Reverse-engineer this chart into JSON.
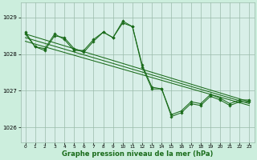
{
  "background_color": "#cceedd",
  "plot_bg_color": "#d8efe8",
  "grid_color": "#99bbaa",
  "line_color": "#1a6b1a",
  "marker_color": "#1a6b1a",
  "xlabel": "Graphe pression niveau de la mer (hPa)",
  "xlabel_fontsize": 6.0,
  "xlim": [
    -0.5,
    23.5
  ],
  "ylim": [
    1025.6,
    1029.4
  ],
  "yticks": [
    1026,
    1027,
    1028,
    1029
  ],
  "xticks": [
    0,
    1,
    2,
    3,
    4,
    5,
    6,
    7,
    8,
    9,
    10,
    11,
    12,
    13,
    14,
    15,
    16,
    17,
    18,
    19,
    20,
    21,
    22,
    23
  ],
  "series_jagged1": {
    "x": [
      0,
      1,
      2,
      3,
      4,
      5,
      6,
      7,
      8,
      9,
      10,
      11,
      12,
      13,
      14,
      15,
      16,
      17,
      18,
      19,
      20,
      21,
      22,
      23
    ],
    "y": [
      1028.55,
      1028.2,
      1028.1,
      1028.5,
      1028.45,
      1028.15,
      1028.05,
      1028.35,
      1028.6,
      1028.45,
      1028.9,
      1028.75,
      1027.65,
      1027.05,
      1027.05,
      1026.3,
      1026.4,
      1026.65,
      1026.6,
      1026.85,
      1026.75,
      1026.6,
      1026.7,
      1026.7
    ]
  },
  "series_jagged2": {
    "x": [
      0,
      1,
      2,
      3,
      4,
      5,
      6,
      7,
      8,
      9,
      10,
      11,
      12,
      13,
      14,
      15,
      16,
      17,
      18,
      19,
      20,
      21,
      22,
      23
    ],
    "y": [
      1028.6,
      1028.2,
      1028.15,
      1028.55,
      1028.4,
      1028.1,
      1028.1,
      1028.4,
      1028.6,
      1028.45,
      1028.85,
      1028.75,
      1027.7,
      1027.1,
      1027.05,
      1026.35,
      1026.45,
      1026.7,
      1026.65,
      1026.9,
      1026.8,
      1026.65,
      1026.75,
      1026.75
    ]
  },
  "series_trend1": {
    "x": [
      0,
      23
    ],
    "y": [
      1028.55,
      1026.7
    ]
  },
  "series_trend2": {
    "x": [
      0,
      23
    ],
    "y": [
      1028.45,
      1026.65
    ]
  },
  "series_trend3": {
    "x": [
      0,
      23
    ],
    "y": [
      1028.35,
      1026.6
    ]
  }
}
